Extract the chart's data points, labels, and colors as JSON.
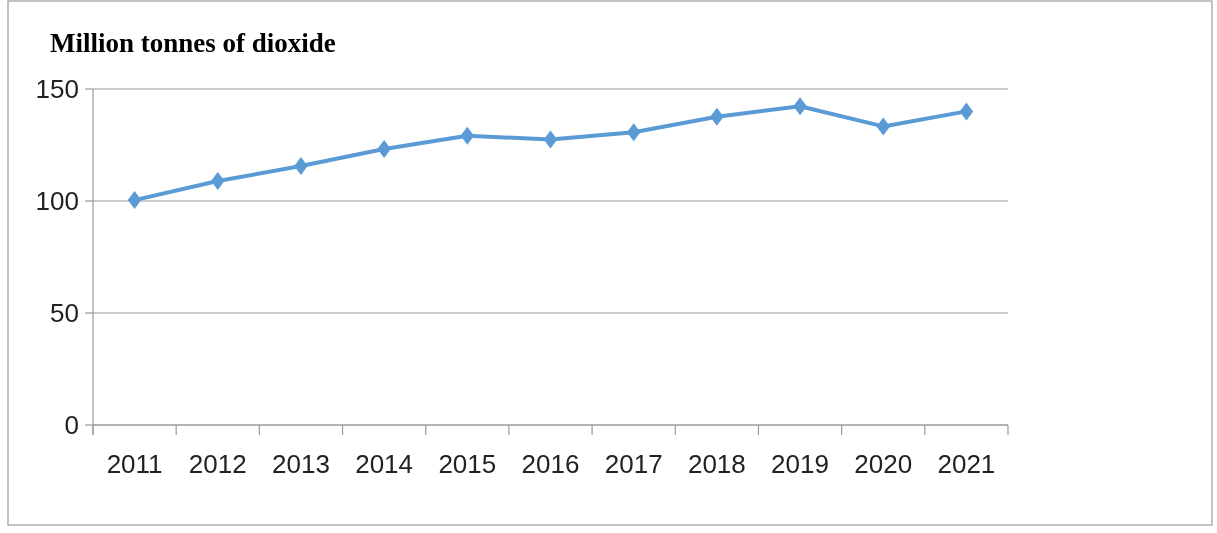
{
  "chart_data": {
    "type": "line",
    "title": "Million tonnes of dioxide",
    "categories": [
      "2011",
      "2012",
      "2013",
      "2014",
      "2015",
      "2016",
      "2017",
      "2018",
      "2019",
      "2020",
      "2021"
    ],
    "series": [
      {
        "color": "#5b9bd5",
        "values": [
          100.4,
          108.9,
          115.6,
          123.2,
          129.1,
          127.5,
          130.7,
          137.6,
          142.3,
          133.3,
          140.0
        ]
      }
    ],
    "ylim": [
      0,
      150
    ],
    "yticks": [
      0,
      50,
      100,
      150
    ],
    "grid": "y",
    "marker": "diamond",
    "line_style": "solid"
  }
}
